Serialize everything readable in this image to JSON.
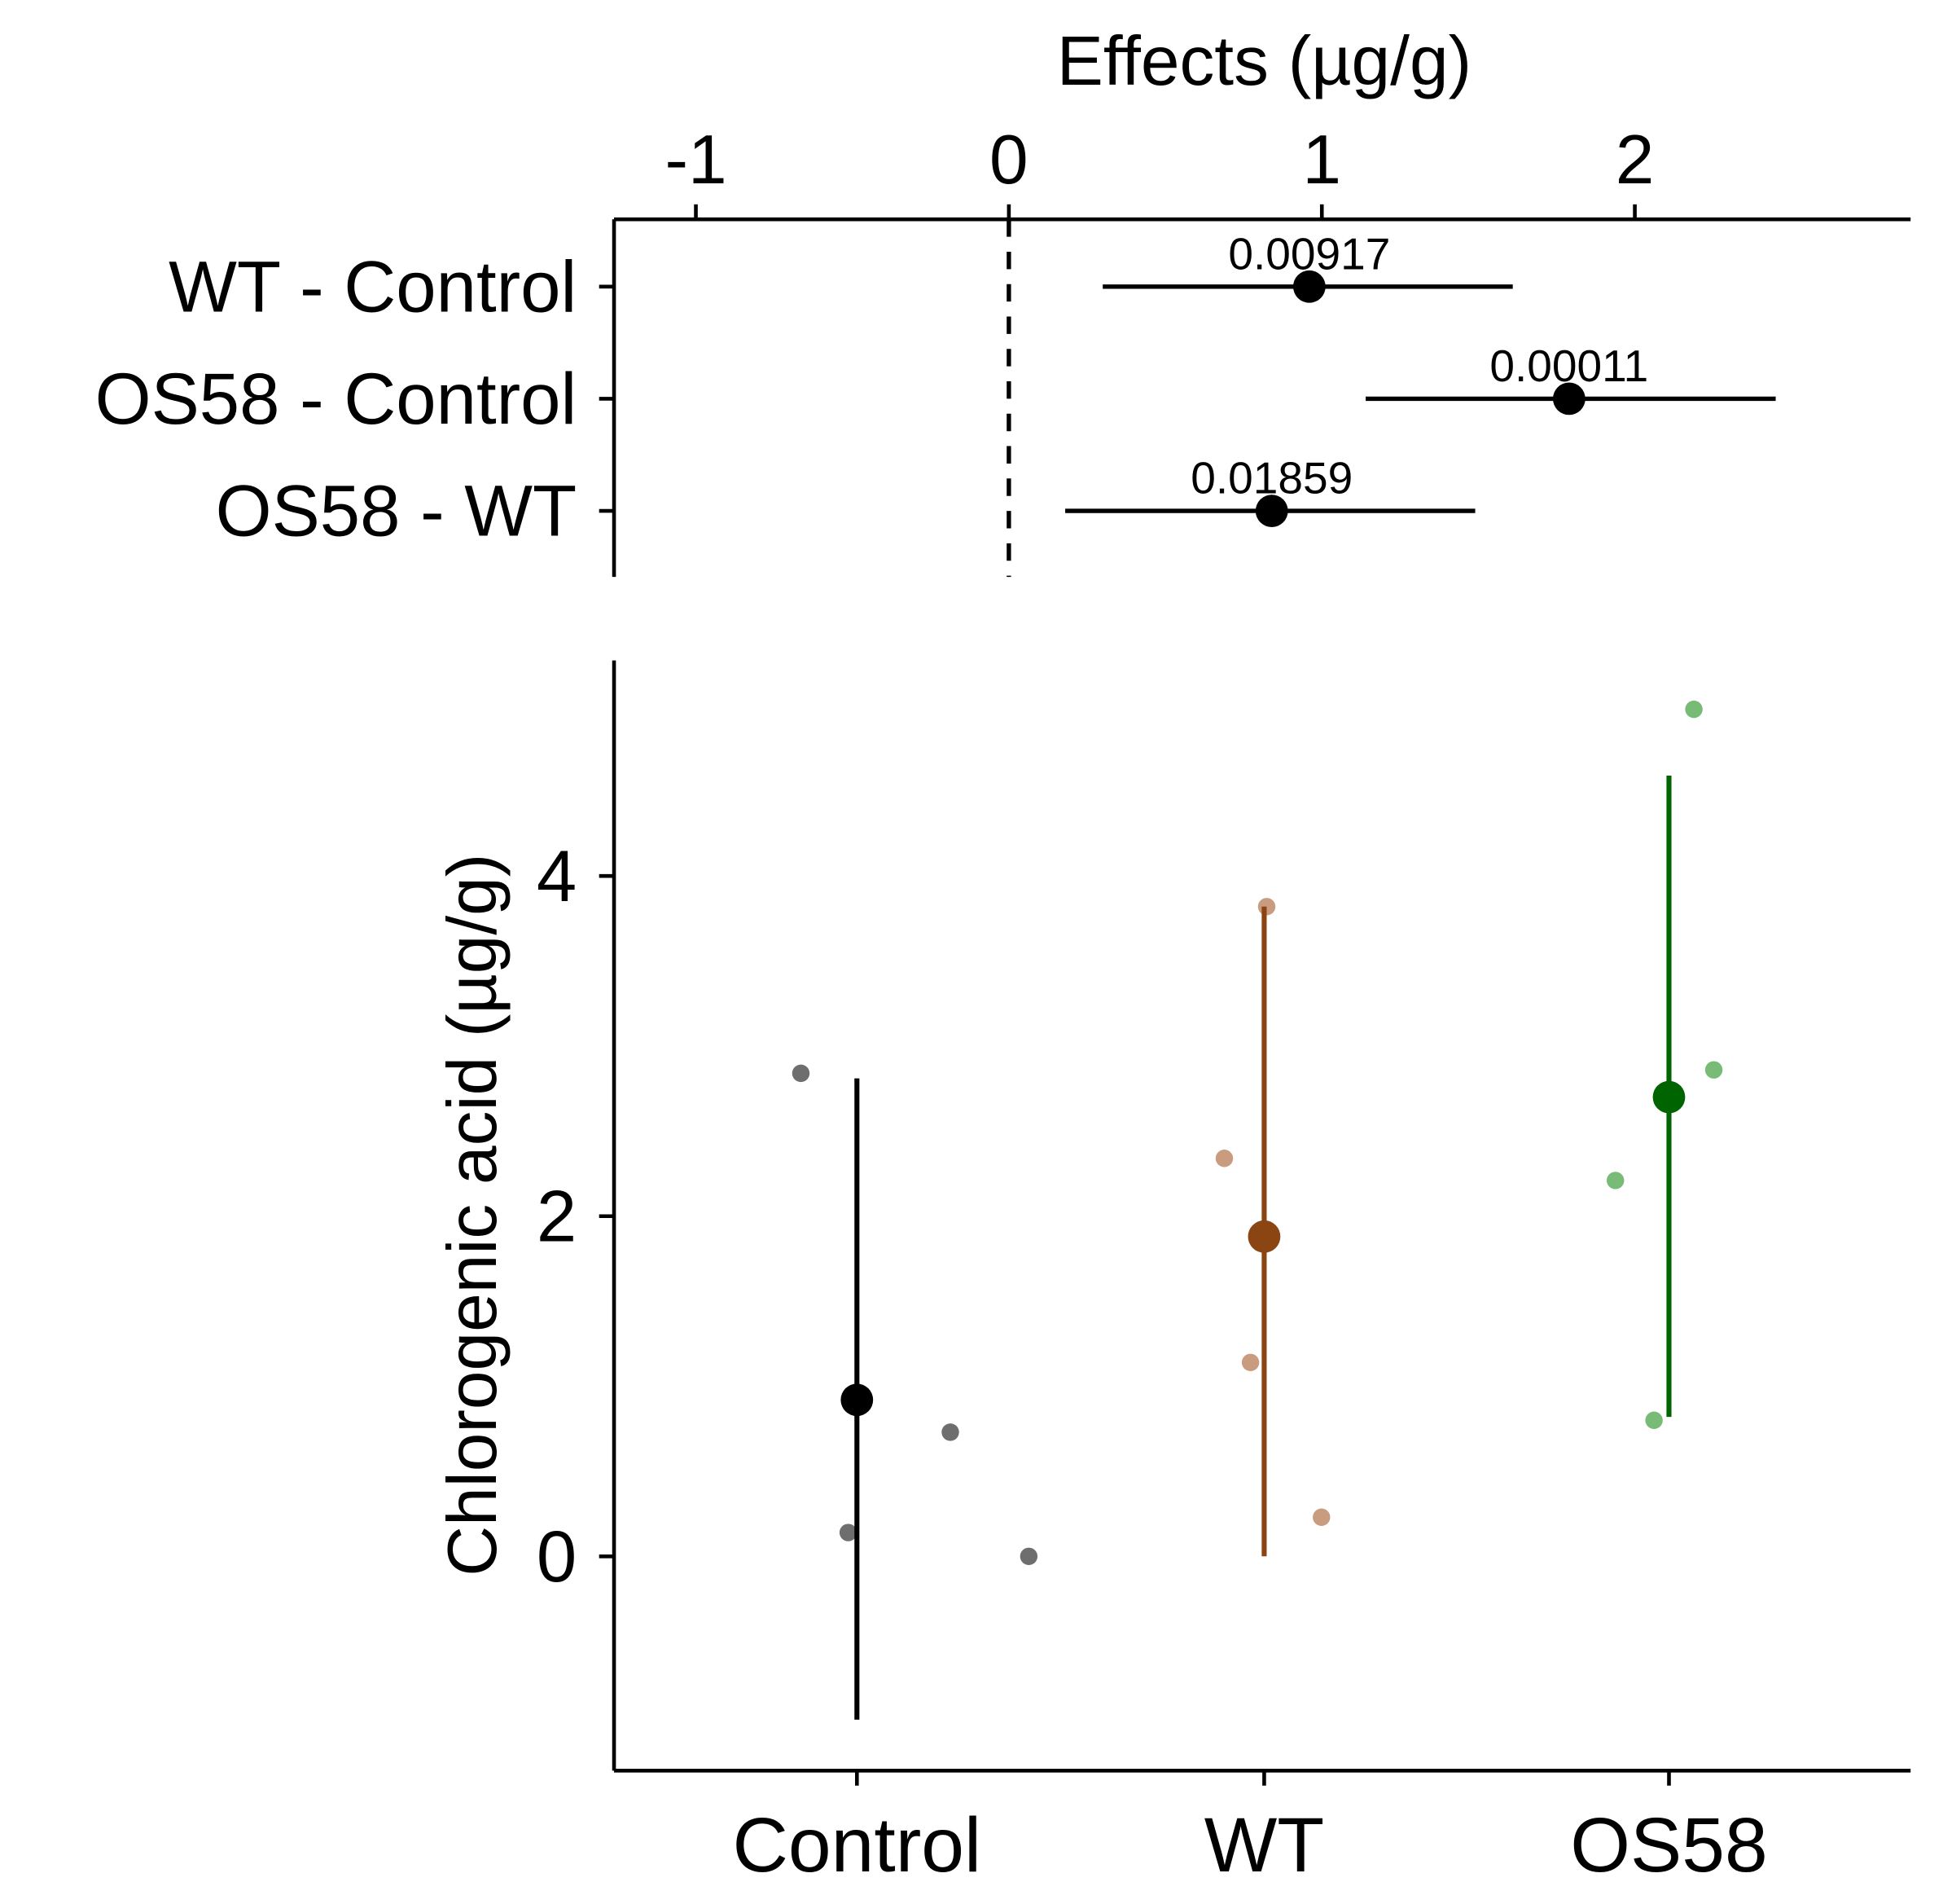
{
  "chart_data": [
    {
      "type": "scatter",
      "subtype": "effect-size-forest",
      "title": "",
      "xlabel": "Effects (µg/g)",
      "xlim": [
        -1.5,
        2.9
      ],
      "xticks": [
        "-1",
        "0",
        "1",
        "2"
      ],
      "reference_line": 0,
      "comparisons": [
        {
          "label": "WT - Control",
          "effect": 0.96,
          "ci": [
            0.3,
            1.61
          ],
          "p": "0.00917"
        },
        {
          "label": "OS58 - Control",
          "effect": 1.79,
          "ci": [
            1.14,
            2.45
          ],
          "p": "0.00011"
        },
        {
          "label": "OS58 - WT",
          "effect": 0.84,
          "ci": [
            0.18,
            1.49
          ],
          "p": "0.01859"
        }
      ]
    },
    {
      "type": "scatter",
      "title": "",
      "xlabel": "",
      "ylabel": "Chlorogenic acid (µg/g)",
      "ylim": [
        -1.25,
        5.25
      ],
      "yticks": [
        "0",
        "2",
        "4"
      ],
      "groups": [
        {
          "name": "Control",
          "color": "#000000",
          "point_color": "#555555",
          "mean": 0.92,
          "ci": [
            -0.96,
            2.81
          ],
          "points": [
            2.84,
            0.73,
            0.14,
            0.0
          ]
        },
        {
          "name": "WT",
          "color": "#8B4513",
          "point_color": "#C08A68",
          "mean": 1.88,
          "ci": [
            0.0,
            3.82
          ],
          "points": [
            3.82,
            2.34,
            1.14,
            0.23
          ]
        },
        {
          "name": "OS58",
          "color": "#006400",
          "point_color": "#5FAF5F",
          "mean": 2.7,
          "ci": [
            0.82,
            4.59
          ],
          "points": [
            4.98,
            2.86,
            2.21,
            0.8
          ]
        }
      ]
    }
  ]
}
